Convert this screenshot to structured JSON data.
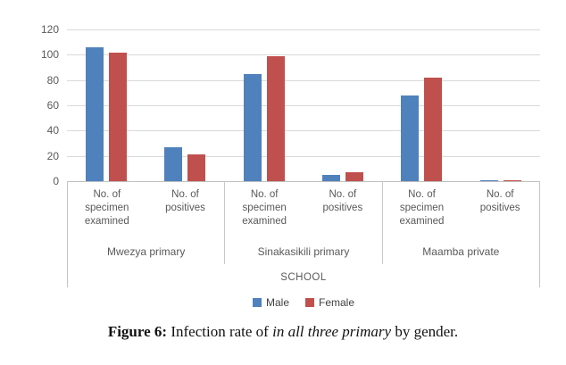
{
  "chart_data": {
    "type": "bar",
    "title": "",
    "xlabel": "SCHOOL",
    "ylabel": "",
    "ylim": [
      0,
      120
    ],
    "ytick_step": 20,
    "grid": true,
    "legend_position": "bottom",
    "axis_text_color": "#595959",
    "group_labels": [
      "Mwezya primary",
      "Sinakasikili primary",
      "Maamba private"
    ],
    "subcategories": [
      "No. of specimen examined",
      "No. of positives"
    ],
    "categories": [
      "No. of specimen examined",
      "No. of positives",
      "No. of specimen examined",
      "No. of positives",
      "No. of specimen examined",
      "No. of positives"
    ],
    "series": [
      {
        "name": "Male",
        "color": "#4F81BD",
        "values": [
          106,
          27,
          85,
          5,
          68,
          1
        ]
      },
      {
        "name": "Female",
        "color": "#C0504D",
        "values": [
          102,
          21,
          99,
          7,
          82,
          1
        ]
      }
    ]
  },
  "figure": {
    "caption_parts": [
      {
        "text": "Figure 6:",
        "style": "bold"
      },
      {
        "text": " Infection rate of ",
        "style": "normal"
      },
      {
        "text": "in all three primary",
        "style": "italic"
      },
      {
        "text": " by gender.",
        "style": "normal"
      }
    ]
  }
}
